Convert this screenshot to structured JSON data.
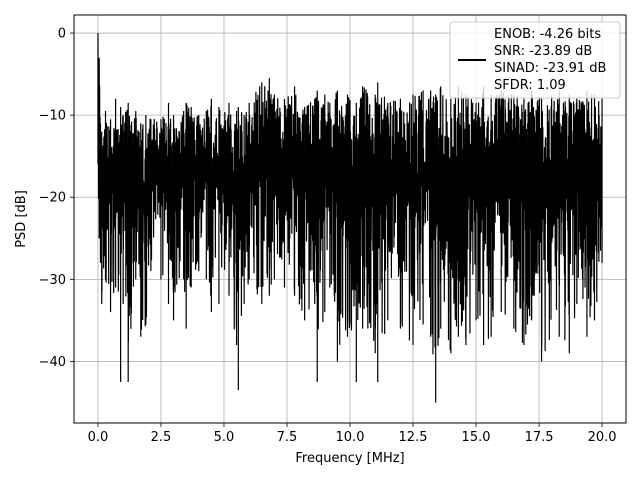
{
  "chart_data": {
    "type": "line",
    "title": "",
    "xlabel": "Frequency [MHz]",
    "ylabel": "PSD [dB]",
    "xlim": [
      -0.95,
      20.95
    ],
    "ylim": [
      -47.5,
      2.2
    ],
    "xticks": [
      0.0,
      2.5,
      5.0,
      7.5,
      10.0,
      12.5,
      15.0,
      17.5,
      20.0
    ],
    "xtick_labels": [
      "0.0",
      "2.5",
      "5.0",
      "7.5",
      "10.0",
      "12.5",
      "15.0",
      "17.5",
      "20.0"
    ],
    "yticks": [
      0,
      -10,
      -20,
      -30,
      -40
    ],
    "ytick_labels": [
      "0",
      "−10",
      "−20",
      "−30",
      "−40"
    ],
    "grid": true,
    "legend_position": "top-right",
    "series": [
      {
        "color": "#000000",
        "legend_lines": [
          "ENOB: -4.26 bits",
          "SNR: -23.89 dB",
          "SINAD: -23.91 dB",
          "SFDR: 1.09"
        ],
        "x": [
          0.0,
          0.05,
          0.1,
          0.15,
          0.3,
          0.5,
          0.7,
          0.9,
          1.0,
          1.2,
          1.5,
          1.7,
          1.9,
          2.1,
          2.5,
          2.8,
          3.0,
          3.4,
          3.5,
          3.7,
          4.0,
          4.3,
          4.5,
          4.8,
          5.2,
          5.5,
          5.57,
          5.8,
          6.0,
          6.5,
          6.8,
          7.0,
          7.4,
          7.8,
          8.2,
          8.6,
          8.7,
          9.0,
          9.2,
          9.5,
          9.9,
          10.25,
          10.5,
          11.0,
          11.1,
          11.5,
          12.0,
          12.5,
          12.9,
          13.2,
          13.4,
          13.6,
          14.0,
          14.3,
          14.6,
          15.0,
          15.3,
          15.6,
          16.0,
          16.5,
          16.9,
          17.2,
          17.6,
          18.3,
          18.7,
          19.0,
          19.4,
          19.7,
          20.0
        ],
        "upper": [
          0.0,
          -3.0,
          -11.0,
          -12.0,
          -9.5,
          -10.5,
          -8.0,
          -9.0,
          -10.0,
          -8.5,
          -9.5,
          -11.0,
          -10.0,
          -10.5,
          -10.5,
          -8.5,
          -10.0,
          -9.5,
          -8.5,
          -9.0,
          -10.0,
          -9.5,
          -8.0,
          -9.0,
          -8.5,
          -9.5,
          -9.0,
          -10.0,
          -8.5,
          -6.0,
          -5.5,
          -7.5,
          -8.0,
          -6.5,
          -9.0,
          -8.0,
          -7.0,
          -7.5,
          -8.5,
          -7.0,
          -7.5,
          -8.5,
          -6.5,
          -7.5,
          -6.0,
          -8.5,
          -8.0,
          -7.5,
          -7.0,
          -7.0,
          -7.5,
          -6.5,
          -8.0,
          -6.5,
          -7.5,
          -8.5,
          -6.5,
          -7.5,
          -7.0,
          -7.5,
          -8.0,
          -7.0,
          -8.0,
          -7.0,
          -7.5,
          -8.0,
          -7.0,
          -7.5,
          -8.0
        ],
        "lower": [
          -16.0,
          -25.0,
          -28.0,
          -33.0,
          -30.0,
          -34.0,
          -31.0,
          -42.5,
          -33.0,
          -42.5,
          -30.0,
          -37.0,
          -35.5,
          -29.0,
          -30.0,
          -33.0,
          -35.0,
          -30.0,
          -36.0,
          -31.0,
          -29.0,
          -30.0,
          -34.0,
          -33.0,
          -32.0,
          -38.0,
          -43.5,
          -33.0,
          -30.0,
          -33.0,
          -32.0,
          -30.0,
          -31.0,
          -32.0,
          -35.0,
          -33.0,
          -42.5,
          -34.0,
          -31.0,
          -40.0,
          -37.0,
          -42.5,
          -36.0,
          -39.0,
          -42.5,
          -35.0,
          -36.0,
          -38.0,
          -35.5,
          -37.0,
          -45.0,
          -36.0,
          -39.0,
          -37.0,
          -38.0,
          -35.0,
          -38.0,
          -37.0,
          -34.0,
          -36.0,
          -38.0,
          -35.0,
          -40.0,
          -37.0,
          -39.0,
          -33.0,
          -37.0,
          -35.0,
          -28.0
        ]
      }
    ]
  }
}
